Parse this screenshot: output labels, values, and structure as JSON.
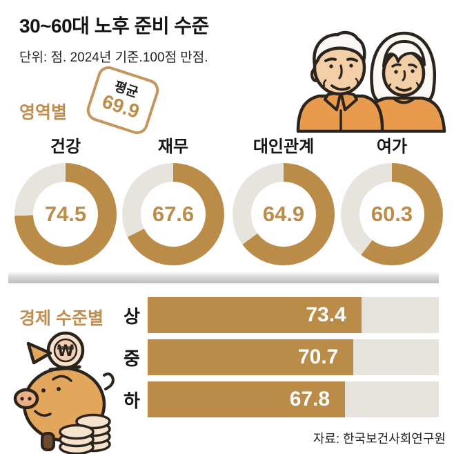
{
  "header": {
    "title": "30~60대 노후 준비 수준",
    "subtitle": "단위: 점. 2024년 기준.100점 만점."
  },
  "badge": {
    "label": "평균",
    "value": "69.9"
  },
  "sections": {
    "area_label": "영역별",
    "econ_label": "경제 수준별"
  },
  "chart_data": [
    {
      "type": "donut-set",
      "title": "영역별 (by area)",
      "max": 100,
      "items": [
        {
          "label": "건강",
          "value": 74.5
        },
        {
          "label": "재무",
          "value": 67.6
        },
        {
          "label": "대인관계",
          "value": 64.9
        },
        {
          "label": "여가",
          "value": 60.3
        }
      ],
      "average": 69.9
    },
    {
      "type": "bar",
      "title": "경제 수준별 (by economic level)",
      "categories": [
        "상",
        "중",
        "하"
      ],
      "values": [
        73.4,
        70.7,
        67.8
      ],
      "xlim": [
        0,
        100
      ],
      "orientation": "horizontal"
    }
  ],
  "source": "자료: 한국보건사회연구원",
  "icons": {
    "couple": "elderly-couple-illustration",
    "piggy_bank": "piggy-bank-illustration",
    "coin": "won-coin-icon"
  },
  "colors": {
    "accent": "#bb8c48",
    "accent_text": "#bd8c49",
    "track": "#e7e4dd",
    "label_brown": "#c08d4e",
    "bar_value_text": "#ffffff",
    "illust_orange": "#e89b4d",
    "illust_skin": "#f3cfa8",
    "illust_pig": "#e2a75d",
    "illust_coin": "#f7e3cd",
    "outline": "#2b241d"
  }
}
